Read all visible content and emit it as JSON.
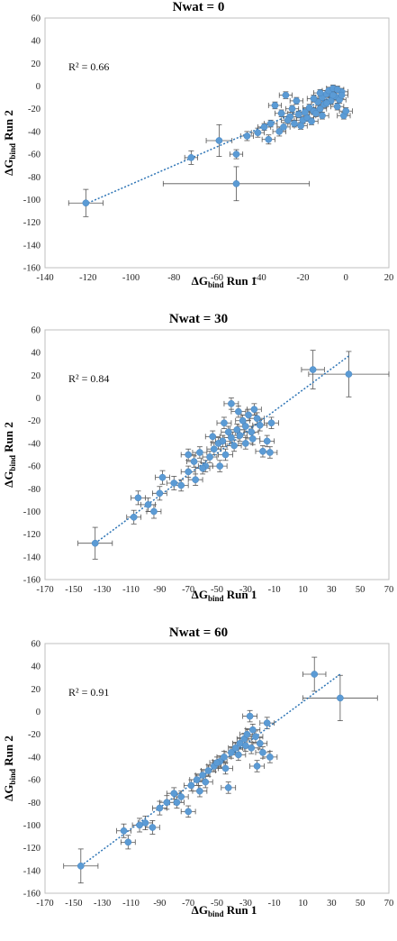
{
  "colors": {
    "marker": "#5b9bd5",
    "errorbar": "#555555",
    "trend": "#2e75b6",
    "frame": "#bfbfbf"
  },
  "chart_data": [
    {
      "type": "scatter",
      "title": "Nwat = 0",
      "xlabel": "ΔG",
      "xlabel_sub": "bind",
      "xlabel_rest": " Run 1",
      "ylabel": "ΔG",
      "ylabel_sub": "bind",
      "ylabel_rest": " Run 2",
      "annotation": "R² = 0.66",
      "xlim": [
        -140,
        20
      ],
      "ylim": [
        -160,
        60
      ],
      "xticks": [
        -140,
        -120,
        -100,
        -80,
        -60,
        -40,
        -20,
        0,
        20
      ],
      "yticks": [
        -160,
        -140,
        -120,
        -100,
        -80,
        -60,
        -40,
        -20,
        0,
        20,
        40,
        60
      ],
      "trendline": [
        [
          -120,
          -103
        ],
        [
          0,
          -4
        ]
      ],
      "points": [
        [
          -121,
          -103,
          8,
          12
        ],
        [
          -72,
          -63,
          3,
          6
        ],
        [
          -59,
          -48,
          6,
          14
        ],
        [
          -51,
          -86,
          34,
          15
        ],
        [
          -51,
          -60,
          3,
          4
        ],
        [
          -46,
          -44,
          3,
          4
        ],
        [
          -41,
          -41,
          3,
          4
        ],
        [
          -36,
          -47,
          3,
          4
        ],
        [
          -31,
          -40,
          3,
          4
        ],
        [
          -29,
          -36,
          3,
          4
        ],
        [
          -26,
          -27,
          3,
          4
        ],
        [
          -28,
          -8,
          3,
          3
        ],
        [
          -33,
          -17,
          3,
          3
        ],
        [
          -22,
          -25,
          3,
          3
        ],
        [
          -20,
          -30,
          3,
          3
        ],
        [
          -17,
          -19,
          3,
          3
        ],
        [
          -15,
          -22,
          3,
          3
        ],
        [
          -13,
          -14,
          3,
          3
        ],
        [
          -11,
          -10,
          3,
          3
        ],
        [
          -9,
          -7,
          3,
          3
        ],
        [
          -8,
          -4,
          3,
          3
        ],
        [
          -6,
          -2,
          3,
          3
        ],
        [
          -5,
          -9,
          3,
          3
        ],
        [
          -4,
          -18,
          3,
          3
        ],
        [
          -3,
          -12,
          3,
          3
        ],
        [
          -2,
          -5,
          3,
          3
        ],
        [
          -1,
          -26,
          3,
          3
        ],
        [
          0,
          -22,
          3,
          3
        ],
        [
          -24,
          -33,
          3,
          3
        ],
        [
          -21,
          -35,
          3,
          3
        ],
        [
          -18,
          -28,
          3,
          3
        ],
        [
          -16,
          -31,
          3,
          3
        ],
        [
          -14,
          -24,
          3,
          3
        ],
        [
          -12,
          -20,
          3,
          3
        ],
        [
          -10,
          -16,
          3,
          3
        ],
        [
          -7,
          -13,
          3,
          3
        ],
        [
          -6,
          -8,
          3,
          3
        ],
        [
          -9,
          -15,
          3,
          3
        ],
        [
          -19,
          -23,
          3,
          3
        ],
        [
          -25,
          -20,
          3,
          3
        ],
        [
          -23,
          -13,
          3,
          3
        ],
        [
          -27,
          -30,
          3,
          3
        ],
        [
          -30,
          -24,
          3,
          3
        ],
        [
          -35,
          -33,
          3,
          3
        ],
        [
          -12,
          -6,
          3,
          3
        ],
        [
          -4,
          -3,
          3,
          3
        ],
        [
          -2,
          -8,
          3,
          3
        ],
        [
          -15,
          -11,
          3,
          3
        ],
        [
          -11,
          -26,
          3,
          3
        ],
        [
          -38,
          -36,
          3,
          3
        ]
      ]
    },
    {
      "type": "scatter",
      "title": "Nwat = 30",
      "xlabel": "ΔG",
      "xlabel_sub": "bind",
      "xlabel_rest": " Run 1",
      "ylabel": "ΔG",
      "ylabel_sub": "bind",
      "ylabel_rest": " Run 2",
      "annotation": "R² = 0.84",
      "xlim": [
        -170,
        70
      ],
      "ylim": [
        -160,
        60
      ],
      "xticks": [
        -170,
        -150,
        -130,
        -110,
        -90,
        -70,
        -50,
        -30,
        -10,
        10,
        30,
        50,
        70
      ],
      "yticks": [
        -160,
        -140,
        -120,
        -100,
        -80,
        -60,
        -40,
        -20,
        0,
        20,
        40,
        60
      ],
      "trendline": [
        [
          -135,
          -128
        ],
        [
          42,
          37
        ]
      ],
      "points": [
        [
          -135,
          -128,
          12,
          14
        ],
        [
          -108,
          -105,
          5,
          6
        ],
        [
          -105,
          -88,
          5,
          6
        ],
        [
          -98,
          -94,
          5,
          6
        ],
        [
          -94,
          -100,
          5,
          6
        ],
        [
          -90,
          -84,
          5,
          6
        ],
        [
          -88,
          -70,
          5,
          6
        ],
        [
          -80,
          -75,
          5,
          6
        ],
        [
          -75,
          -77,
          5,
          5
        ],
        [
          -70,
          -65,
          5,
          5
        ],
        [
          -66,
          -56,
          5,
          5
        ],
        [
          -62,
          -48,
          5,
          5
        ],
        [
          -58,
          -60,
          5,
          5
        ],
        [
          -55,
          -52,
          5,
          5
        ],
        [
          -52,
          -45,
          5,
          5
        ],
        [
          -49,
          -40,
          5,
          5
        ],
        [
          -46,
          -38,
          5,
          5
        ],
        [
          -44,
          -50,
          5,
          5
        ],
        [
          -42,
          -30,
          5,
          5
        ],
        [
          -40,
          -35,
          5,
          5
        ],
        [
          -38,
          -42,
          5,
          5
        ],
        [
          -36,
          -28,
          5,
          5
        ],
        [
          -34,
          -33,
          5,
          5
        ],
        [
          -32,
          -20,
          5,
          5
        ],
        [
          -30,
          -25,
          5,
          5
        ],
        [
          -28,
          -15,
          5,
          5
        ],
        [
          -26,
          -30,
          5,
          5
        ],
        [
          -24,
          -10,
          5,
          5
        ],
        [
          -22,
          -18,
          5,
          5
        ],
        [
          -20,
          -24,
          5,
          5
        ],
        [
          -18,
          -47,
          5,
          5
        ],
        [
          -15,
          -38,
          5,
          5
        ],
        [
          -13,
          -48,
          5,
          5
        ],
        [
          -12,
          -22,
          5,
          5
        ],
        [
          -40,
          -5,
          5,
          5
        ],
        [
          -35,
          -12,
          5,
          5
        ],
        [
          -48,
          -60,
          5,
          5
        ],
        [
          -60,
          -62,
          5,
          5
        ],
        [
          -65,
          -72,
          5,
          5
        ],
        [
          -45,
          -22,
          5,
          5
        ],
        [
          -30,
          -40,
          5,
          5
        ],
        [
          -25,
          -36,
          5,
          5
        ],
        [
          -53,
          -34,
          5,
          5
        ],
        [
          -70,
          -50,
          5,
          5
        ],
        [
          17,
          25,
          8,
          17
        ],
        [
          42,
          21,
          28,
          20
        ]
      ]
    },
    {
      "type": "scatter",
      "title": "Nwat = 60",
      "xlabel": "ΔG",
      "xlabel_sub": "bind",
      "xlabel_rest": " Run 1",
      "ylabel": "ΔG",
      "ylabel_sub": "bind",
      "ylabel_rest": " Run 2",
      "annotation": "R² = 0.91",
      "xlim": [
        -170,
        70
      ],
      "ylim": [
        -160,
        60
      ],
      "xticks": [
        -170,
        -150,
        -130,
        -110,
        -90,
        -70,
        -50,
        -30,
        -10,
        10,
        30,
        50,
        70
      ],
      "yticks": [
        -160,
        -140,
        -120,
        -100,
        -80,
        -60,
        -40,
        -20,
        0,
        20,
        40,
        60
      ],
      "trendline": [
        [
          -145,
          -136
        ],
        [
          36,
          33
        ]
      ],
      "points": [
        [
          -145,
          -136,
          12,
          15
        ],
        [
          -115,
          -105,
          5,
          6
        ],
        [
          -112,
          -115,
          5,
          6
        ],
        [
          -104,
          -100,
          5,
          6
        ],
        [
          -100,
          -98,
          5,
          6
        ],
        [
          -95,
          -102,
          5,
          6
        ],
        [
          -90,
          -85,
          5,
          6
        ],
        [
          -85,
          -80,
          5,
          6
        ],
        [
          -80,
          -72,
          5,
          5
        ],
        [
          -75,
          -75,
          5,
          5
        ],
        [
          -70,
          -88,
          5,
          5
        ],
        [
          -68,
          -65,
          5,
          5
        ],
        [
          -64,
          -60,
          5,
          5
        ],
        [
          -60,
          -56,
          5,
          5
        ],
        [
          -56,
          -52,
          5,
          5
        ],
        [
          -52,
          -48,
          5,
          5
        ],
        [
          -48,
          -44,
          5,
          5
        ],
        [
          -45,
          -40,
          5,
          5
        ],
        [
          -42,
          -67,
          5,
          5
        ],
        [
          -40,
          -36,
          5,
          5
        ],
        [
          -37,
          -32,
          5,
          5
        ],
        [
          -34,
          -28,
          5,
          5
        ],
        [
          -31,
          -24,
          5,
          5
        ],
        [
          -29,
          -20,
          5,
          5
        ],
        [
          -27,
          -4,
          5,
          5
        ],
        [
          -25,
          -16,
          5,
          5
        ],
        [
          -22,
          -48,
          5,
          5
        ],
        [
          -20,
          -28,
          5,
          5
        ],
        [
          -18,
          -36,
          5,
          5
        ],
        [
          -15,
          -10,
          5,
          5
        ],
        [
          -13,
          -40,
          5,
          5
        ],
        [
          -50,
          -45,
          5,
          5
        ],
        [
          -58,
          -62,
          5,
          5
        ],
        [
          -35,
          -38,
          5,
          5
        ],
        [
          -30,
          -30,
          5,
          5
        ],
        [
          -23,
          -22,
          5,
          5
        ],
        [
          -44,
          -50,
          5,
          5
        ],
        [
          -62,
          -70,
          5,
          5
        ],
        [
          -78,
          -80,
          5,
          5
        ],
        [
          -26,
          -32,
          5,
          5
        ],
        [
          18,
          33,
          8,
          15
        ],
        [
          36,
          12,
          26,
          20
        ]
      ]
    }
  ]
}
